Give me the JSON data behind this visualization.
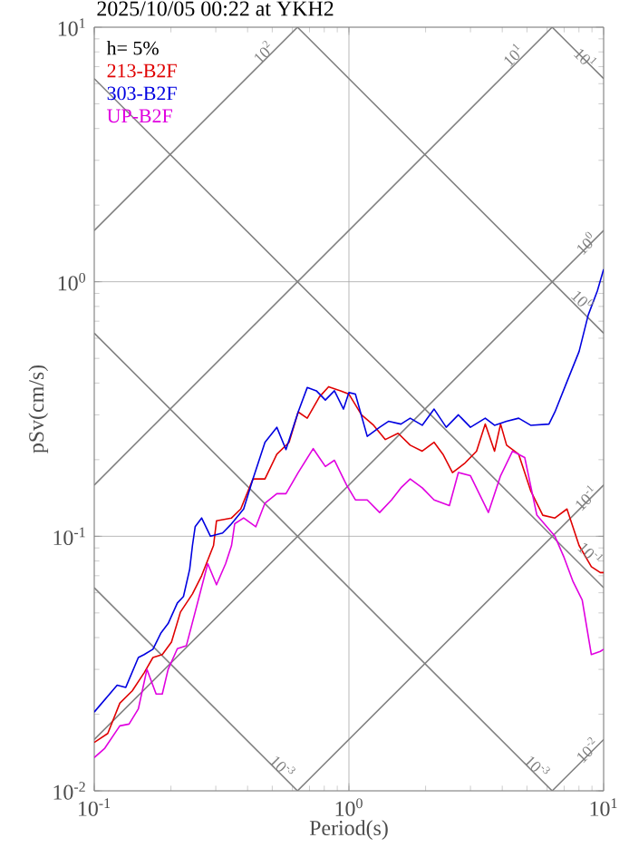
{
  "chart_data": {
    "type": "line",
    "title": "2025/10/05 00:22 at YKH2",
    "xlabel": "Period(s)",
    "ylabel": "pSv(cm/s)",
    "legend_title": "h= 5%",
    "legend": "top left",
    "log": "xy",
    "grid": true,
    "xlim": [
      0.1,
      10
    ],
    "ylim": [
      0.01,
      10
    ],
    "xticks": [
      {
        "value": 0.1,
        "label": "10$^{-1}$"
      },
      {
        "value": 1,
        "label": "10$^{0}$"
      },
      {
        "value": 10,
        "label": "10$^{1}$"
      }
    ],
    "yticks": [
      {
        "value": 0.01,
        "label": "10$^{-2}$"
      },
      {
        "value": 0.1,
        "label": "10$^{-1}$"
      },
      {
        "value": 1,
        "label": "10$^{0}$"
      },
      {
        "value": 10,
        "label": "10$^{1}$"
      }
    ],
    "series": [
      {
        "color": "#808080",
        "x": [
          0.1,
          0.628
        ],
        "values": [
          1.59,
          10
        ]
      },
      {
        "color": "#808080",
        "x": [
          0.1,
          6.28
        ],
        "values": [
          0.159,
          10
        ]
      },
      {
        "color": "#808080",
        "x": [
          0.1,
          10
        ],
        "values": [
          0.0159,
          1.59
        ]
      },
      {
        "color": "#808080",
        "x": [
          0.628,
          10
        ],
        "values": [
          0.01,
          0.159
        ]
      },
      {
        "color": "#808080",
        "x": [
          6.28,
          10
        ],
        "values": [
          0.01,
          0.0159
        ]
      },
      {
        "color": "#808080",
        "x": [
          6.28,
          10
        ],
        "values": [
          10,
          6.28
        ]
      },
      {
        "color": "#808080",
        "x": [
          0.628,
          10
        ],
        "values": [
          10,
          0.628
        ]
      },
      {
        "color": "#808080",
        "x": [
          0.1,
          10
        ],
        "values": [
          6.28,
          0.0628
        ]
      },
      {
        "color": "#808080",
        "x": [
          0.1,
          6.28
        ],
        "values": [
          0.628,
          0.01
        ]
      },
      {
        "color": "#808080",
        "x": [
          0.1,
          0.628
        ],
        "values": [
          0.0628,
          0.01
        ]
      },
      {
        "name": "213-B2F",
        "color": "#e00000",
        "x": [
          0.1,
          0.113,
          0.126,
          0.141,
          0.157,
          0.17,
          0.185,
          0.201,
          0.218,
          0.243,
          0.264,
          0.294,
          0.302,
          0.346,
          0.376,
          0.42,
          0.468,
          0.521,
          0.582,
          0.632,
          0.686,
          0.766,
          0.832,
          0.927,
          1.0,
          1.12,
          1.25,
          1.39,
          1.56,
          1.74,
          1.94,
          2.16,
          2.34,
          2.55,
          2.84,
          3.17,
          3.43,
          3.73,
          3.94,
          4.16,
          4.64,
          5.17,
          5.77,
          6.44,
          7.18,
          8.01,
          8.95,
          9.71,
          10
        ],
        "values": [
          0.0155,
          0.0168,
          0.0221,
          0.0247,
          0.0291,
          0.0334,
          0.0343,
          0.0384,
          0.0504,
          0.0594,
          0.07,
          0.092,
          0.115,
          0.118,
          0.128,
          0.168,
          0.168,
          0.21,
          0.234,
          0.308,
          0.291,
          0.353,
          0.387,
          0.373,
          0.362,
          0.3,
          0.273,
          0.24,
          0.254,
          0.228,
          0.216,
          0.234,
          0.21,
          0.178,
          0.193,
          0.216,
          0.276,
          0.216,
          0.276,
          0.228,
          0.21,
          0.151,
          0.121,
          0.118,
          0.128,
          0.092,
          0.076,
          0.072,
          0.072
        ]
      },
      {
        "name": "303-B2F",
        "color": "#0000e0",
        "x": [
          0.1,
          0.123,
          0.133,
          0.149,
          0.157,
          0.17,
          0.183,
          0.195,
          0.212,
          0.224,
          0.237,
          0.243,
          0.249,
          0.264,
          0.286,
          0.319,
          0.346,
          0.386,
          0.42,
          0.468,
          0.521,
          0.566,
          0.632,
          0.686,
          0.745,
          0.808,
          0.877,
          0.952,
          1.0,
          1.06,
          1.18,
          1.32,
          1.43,
          1.6,
          1.74,
          1.94,
          2.16,
          2.41,
          2.69,
          3.0,
          3.43,
          3.73,
          4.16,
          4.64,
          5.17,
          6.1,
          6.44,
          7.18,
          8.01,
          8.7,
          9.45,
          10
        ],
        "values": [
          0.0204,
          0.026,
          0.0255,
          0.0334,
          0.0343,
          0.036,
          0.0418,
          0.0454,
          0.0547,
          0.058,
          0.0743,
          0.092,
          0.109,
          0.118,
          0.1,
          0.103,
          0.112,
          0.128,
          0.168,
          0.234,
          0.268,
          0.219,
          0.308,
          0.384,
          0.373,
          0.343,
          0.373,
          0.316,
          0.367,
          0.362,
          0.247,
          0.268,
          0.283,
          0.276,
          0.291,
          0.273,
          0.316,
          0.268,
          0.3,
          0.268,
          0.291,
          0.273,
          0.283,
          0.291,
          0.273,
          0.276,
          0.308,
          0.405,
          0.532,
          0.74,
          0.921,
          1.12
        ]
      },
      {
        "name": "UP-B2F",
        "color": "#e000e0",
        "x": [
          0.1,
          0.11,
          0.126,
          0.137,
          0.149,
          0.161,
          0.175,
          0.185,
          0.195,
          0.212,
          0.23,
          0.249,
          0.279,
          0.302,
          0.328,
          0.346,
          0.356,
          0.386,
          0.431,
          0.468,
          0.521,
          0.566,
          0.632,
          0.724,
          0.808,
          0.877,
          0.979,
          1.06,
          1.18,
          1.32,
          1.47,
          1.6,
          1.74,
          1.94,
          2.16,
          2.48,
          2.69,
          3.0,
          3.53,
          3.94,
          4.39,
          4.9,
          5.47,
          6.44,
          7.0,
          7.59,
          8.24,
          8.95,
          9.71,
          10
        ],
        "values": [
          0.0135,
          0.0147,
          0.018,
          0.0183,
          0.021,
          0.03,
          0.024,
          0.024,
          0.03,
          0.0362,
          0.0372,
          0.0504,
          0.0781,
          0.0645,
          0.0781,
          0.092,
          0.112,
          0.118,
          0.109,
          0.135,
          0.147,
          0.147,
          0.178,
          0.221,
          0.188,
          0.199,
          0.159,
          0.139,
          0.139,
          0.124,
          0.139,
          0.155,
          0.168,
          0.155,
          0.139,
          0.132,
          0.178,
          0.173,
          0.124,
          0.173,
          0.216,
          0.204,
          0.121,
          0.1,
          0.0824,
          0.0663,
          0.0562,
          0.0343,
          0.0353,
          0.036
        ]
      }
    ],
    "annotations": [
      {
        "text": "10$^{2}$",
        "x": 0.46,
        "y": 8.0
      },
      {
        "text": "10$^{1}$",
        "x": 4.4,
        "y": 7.8
      },
      {
        "text": "10$^{1}$",
        "x": 8.5,
        "y": 7.6
      },
      {
        "text": "10$^{0}$",
        "x": 8.5,
        "y": 1.42
      },
      {
        "text": "10$^{0}$",
        "x": 8.3,
        "y": 0.85
      },
      {
        "text": "10$^{-1}$",
        "x": 8.5,
        "y": 0.142
      },
      {
        "text": "10$^{-1}$",
        "x": 8.9,
        "y": 0.086
      },
      {
        "text": "10$^{-3}$",
        "x": 0.55,
        "y": 0.0125
      },
      {
        "text": "10$^{-3}$",
        "x": 5.5,
        "y": 0.0125
      },
      {
        "text": "10$^{-2}$",
        "x": 8.6,
        "y": 0.0145
      }
    ]
  }
}
